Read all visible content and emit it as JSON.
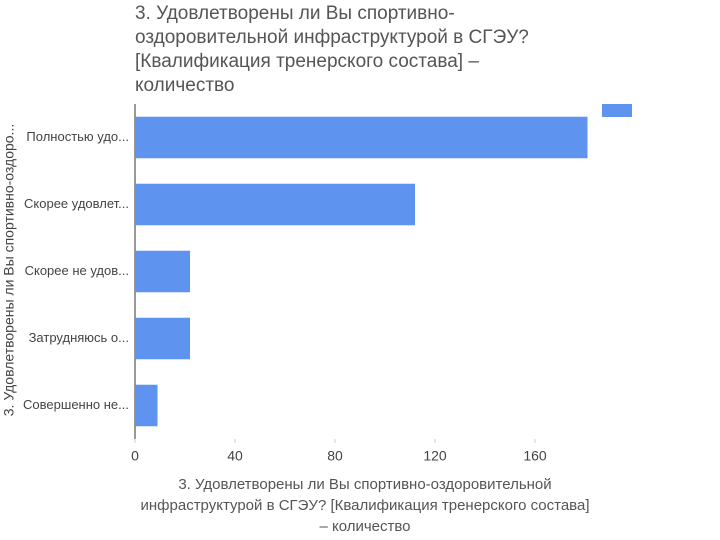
{
  "chart_data": {
    "type": "bar",
    "orientation": "horizontal",
    "title": "3. Удовлетворены ли Вы спортивно-оздоровительной инфраструктурой в СГЭУ? [Квалификация тренерского состава] – количество",
    "x_label": "3. Удовлетворены ли Вы спортивно-оздоровительной инфраструктурой в СГЭУ? [Квалификация тренерского состава] – количество",
    "y_label": "3. Удовлетворены ли Вы спортивно-оздоро...",
    "categories": [
      "Полностью удо...",
      "Скорее удовлет...",
      "Скорее не удов...",
      "Затрудняюсь о...",
      "Совершенно не..."
    ],
    "values": [
      181,
      112,
      22,
      22,
      9
    ],
    "color": "#5e93ef",
    "xlim": [
      0,
      186
    ],
    "xticks": [
      0,
      40,
      80,
      120,
      160
    ],
    "grid": false
  }
}
